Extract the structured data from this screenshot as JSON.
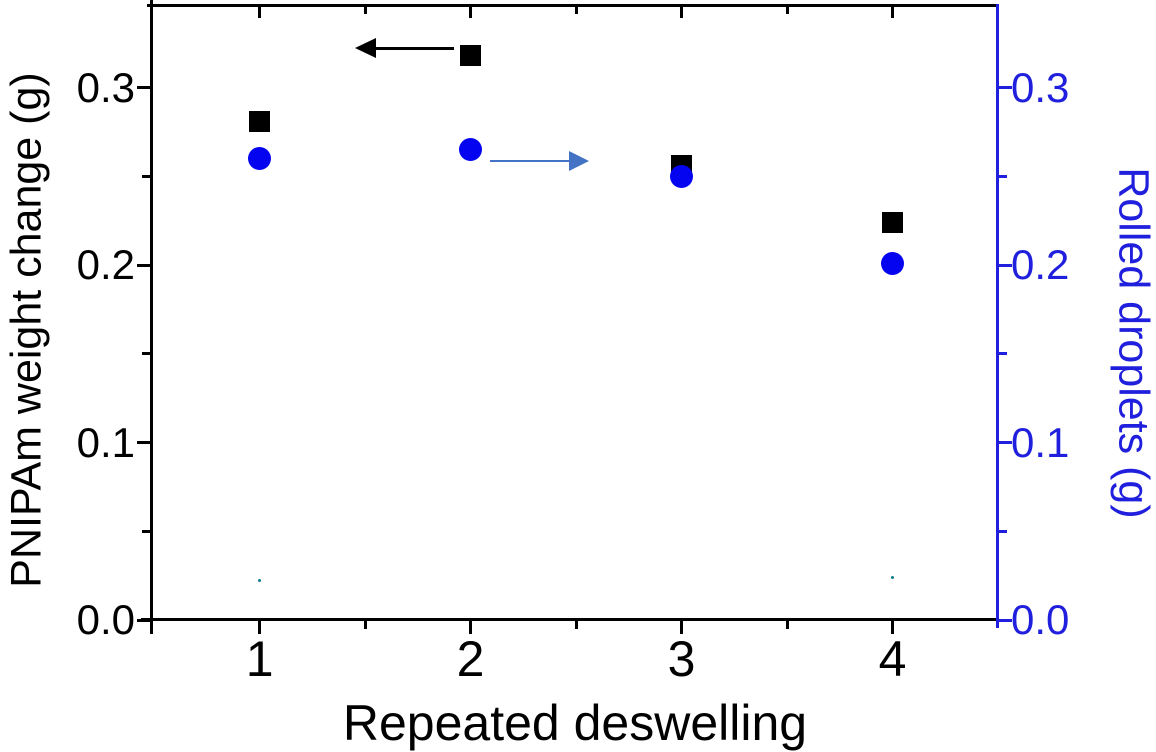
{
  "chart_data": {
    "type": "scatter",
    "title": "",
    "xlabel": "Repeated deswelling",
    "ylabel_left": "PNIPAm weight change (g)",
    "ylabel_right": "Rolled droplets (g)",
    "x": [
      1,
      2,
      3,
      4
    ],
    "series": [
      {
        "name": "PNIPAm weight change (g)",
        "axis": "left",
        "marker": "square",
        "color": "#000000",
        "values": [
          0.281,
          0.318,
          0.256,
          0.224
        ]
      },
      {
        "name": "Rolled droplets (g)",
        "axis": "right",
        "marker": "circle",
        "color": "#0404f0",
        "values": [
          0.26,
          0.265,
          0.25,
          0.201
        ]
      }
    ],
    "xlim": [
      0.49,
      4.5
    ],
    "ylim": [
      0,
      0.345
    ],
    "x_major_ticks": [
      1,
      2,
      3,
      4
    ],
    "x_tick_labels": [
      "1",
      "2",
      "3",
      "4"
    ],
    "x_minor_ticks": [
      1.5,
      2.5,
      3.5
    ],
    "y_major_ticks": [
      0,
      0.1,
      0.2,
      0.3
    ],
    "y_tick_labels": [
      "0.0",
      "0.1",
      "0.2",
      "0.3"
    ],
    "y_minor_ticks": [
      0.05,
      0.15,
      0.25
    ],
    "grid": false,
    "legend_position": "none",
    "axis_colors": {
      "left": "#000000",
      "bottom": "#000000",
      "top": "#000000",
      "right": "#1f1fdd"
    },
    "annotations": [
      {
        "type": "arrow",
        "direction": "left",
        "color": "#000000",
        "line_width": 3,
        "head_length": 21,
        "head_half_width": 10.5,
        "x_tail": 1.92,
        "x_head": 1.45,
        "y": 0.322
      },
      {
        "type": "arrow",
        "direction": "right",
        "color": "#4472c4",
        "line_width": 2,
        "head_length": 20,
        "head_half_width": 10,
        "x_tail": 2.09,
        "x_head": 2.56,
        "y": 0.259
      }
    ],
    "stray_marks": [
      {
        "x": 1.0,
        "y": 0.022,
        "color": "#0e7f8e"
      },
      {
        "x": 4.0,
        "y": 0.024,
        "color": "#0e7f8e"
      }
    ]
  }
}
